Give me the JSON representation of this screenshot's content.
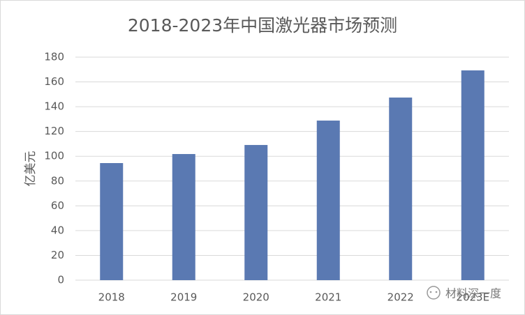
{
  "chart_data": {
    "type": "bar",
    "title": "2018-2023年中国激光器市场预测",
    "y_label": "亿美元",
    "categories": [
      "2018",
      "2019",
      "2020",
      "2021",
      "2022",
      "2023E"
    ],
    "values": [
      94.5,
      101.8,
      109.1,
      128.8,
      147.4,
      169.3
    ],
    "color": "#5a79b2",
    "ylim": [
      0,
      180
    ],
    "yticks": [
      0,
      20,
      40,
      60,
      80,
      100,
      120,
      140,
      160,
      180
    ],
    "grid": true,
    "watermark": "材料深一度"
  }
}
